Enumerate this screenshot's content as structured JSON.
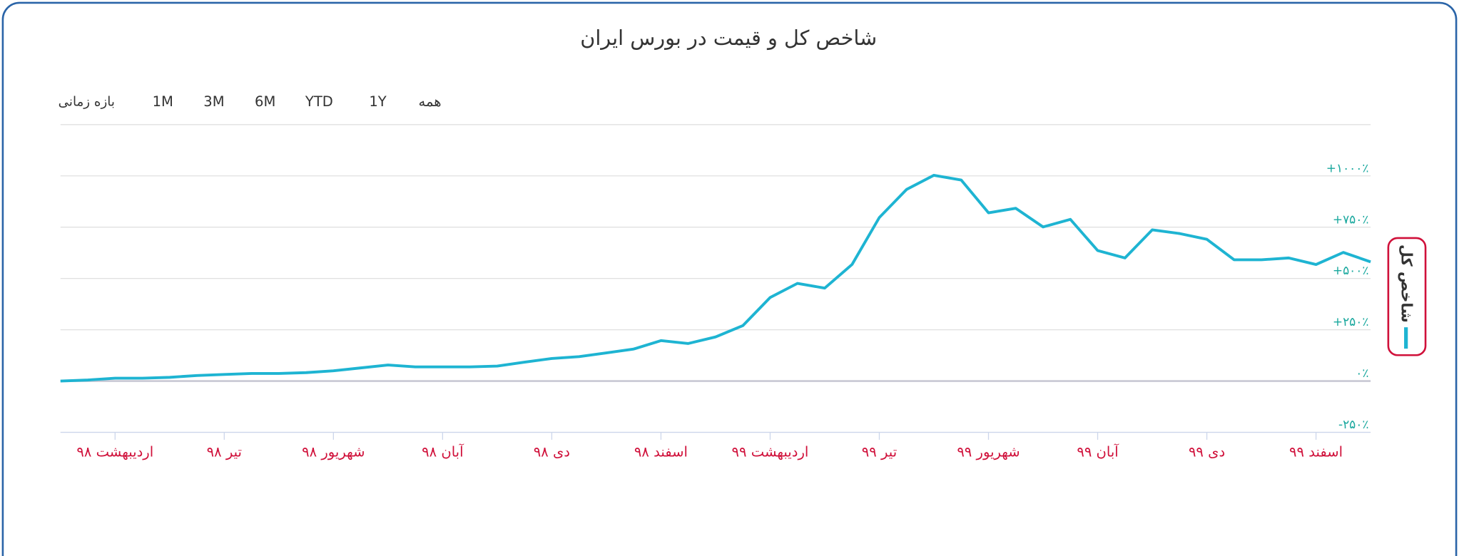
{
  "range_selector": {
    "label": "بازه زمانی",
    "buttons": [
      "1M",
      "3M",
      "6M",
      "YTD",
      "1Y",
      "همه"
    ]
  },
  "chart_data": {
    "type": "line",
    "title": "شاخص کل و قیمت در بورس ایران",
    "categories": [
      null,
      null,
      "اردیبهشت ۹۸",
      null,
      null,
      null,
      "تیر ۹۸",
      null,
      null,
      null,
      "شهریور ۹۸",
      null,
      null,
      null,
      "آبان ۹۸",
      null,
      null,
      null,
      "دی ۹۸",
      null,
      null,
      null,
      "اسفند ۹۸",
      null,
      null,
      null,
      "اردیبهشت ۹۹",
      null,
      null,
      null,
      "تیر ۹۹",
      null,
      null,
      null,
      "شهریور ۹۹",
      null,
      null,
      null,
      "آبان ۹۹",
      null,
      null,
      null,
      "دی ۹۹",
      null,
      null,
      null,
      "اسفند ۹۹",
      null,
      null
    ],
    "series": [
      {
        "name": "شاخص کل",
        "color": "#1eb4d2",
        "values": [
          0,
          5,
          14,
          14,
          18,
          27,
          32,
          37,
          37,
          41,
          50,
          64,
          78,
          69,
          69,
          69,
          73,
          92,
          110,
          119,
          137,
          156,
          197,
          183,
          215,
          270,
          407,
          476,
          453,
          568,
          797,
          934,
          1003,
          980,
          820,
          842,
          751,
          788,
          636,
          600,
          737,
          719,
          691,
          591,
          591,
          600,
          568,
          627,
          581
        ]
      }
    ],
    "ylim": [
      -250,
      1250
    ],
    "yticks": [
      {
        "value": -250,
        "label": "-۲۵۰٪"
      },
      {
        "value": 0,
        "label": "۰٪"
      },
      {
        "value": 250,
        "label": "+۲۵۰٪"
      },
      {
        "value": 500,
        "label": "+۵۰۰٪"
      },
      {
        "value": 750,
        "label": "+۷۵۰٪"
      },
      {
        "value": 1000,
        "label": "+۱۰۰۰٪"
      }
    ],
    "grid": true,
    "legend": "right"
  }
}
